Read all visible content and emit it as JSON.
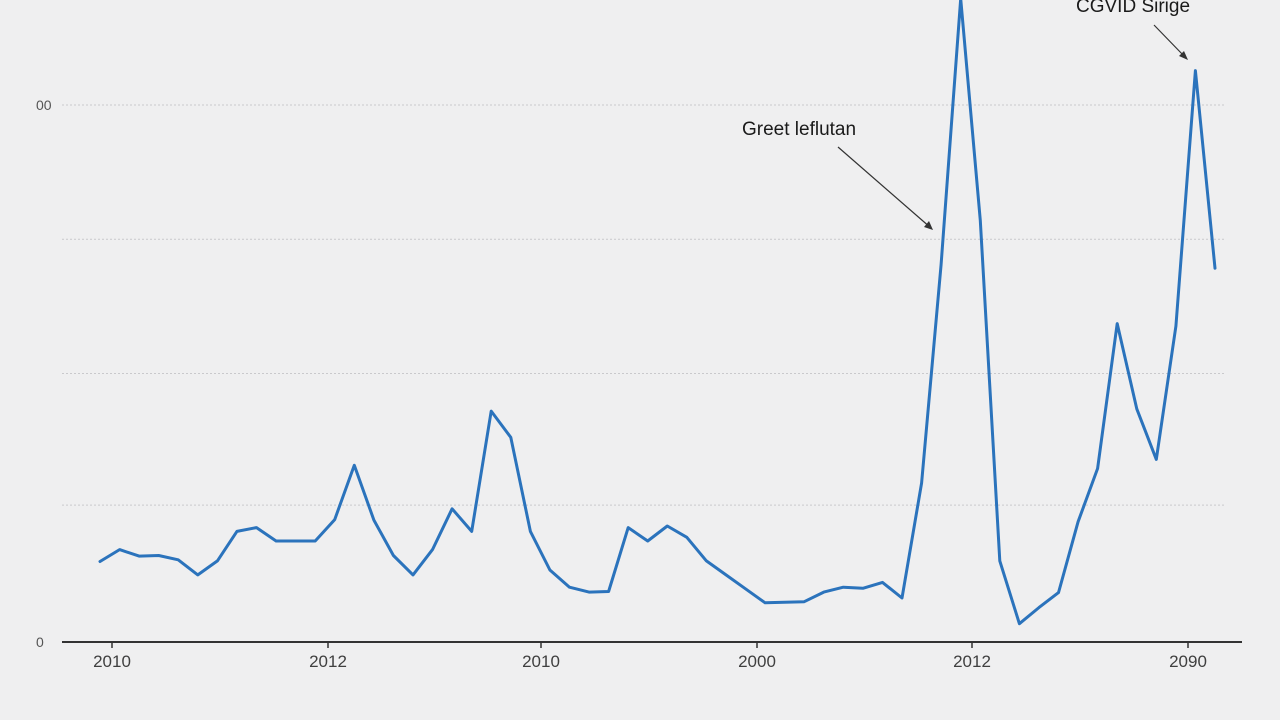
{
  "chart_data": {
    "type": "line",
    "title": "",
    "xlabel": "",
    "ylabel": "",
    "x_tick_labels": [
      "2010",
      "2012",
      "2010",
      "2000",
      "2012",
      "2090"
    ],
    "y_tick_labels": [
      "00",
      "0"
    ],
    "ylim": [
      0,
      100
    ],
    "grid": true,
    "series": [
      {
        "color": "#2b73bc",
        "values": [
          15,
          17.2,
          16,
          16.1,
          15.3,
          12.5,
          15.1,
          20.6,
          21.3,
          18.8,
          18.8,
          18.8,
          22.8,
          32.9,
          22.7,
          16.1,
          12.5,
          17.2,
          24.8,
          20.6,
          43,
          38.1,
          20.6,
          13.4,
          10.2,
          9.3,
          9.4,
          21.3,
          18.8,
          21.6,
          19.5,
          15.1,
          12.5,
          9.9,
          7.3,
          7.4,
          7.5,
          9.3,
          10.2,
          10,
          11.1,
          8.2,
          29.6,
          70.3,
          119.8,
          78.5,
          15.1,
          3.4,
          6.4,
          9.2,
          22.4,
          32.3,
          59.3,
          43.4,
          34,
          58.8,
          106.4,
          69.6
        ]
      }
    ],
    "annotations": [
      {
        "text": "Greet leflutan",
        "target_index": 44
      },
      {
        "text": "CGVID Sirige",
        "target_index": 56
      }
    ]
  }
}
